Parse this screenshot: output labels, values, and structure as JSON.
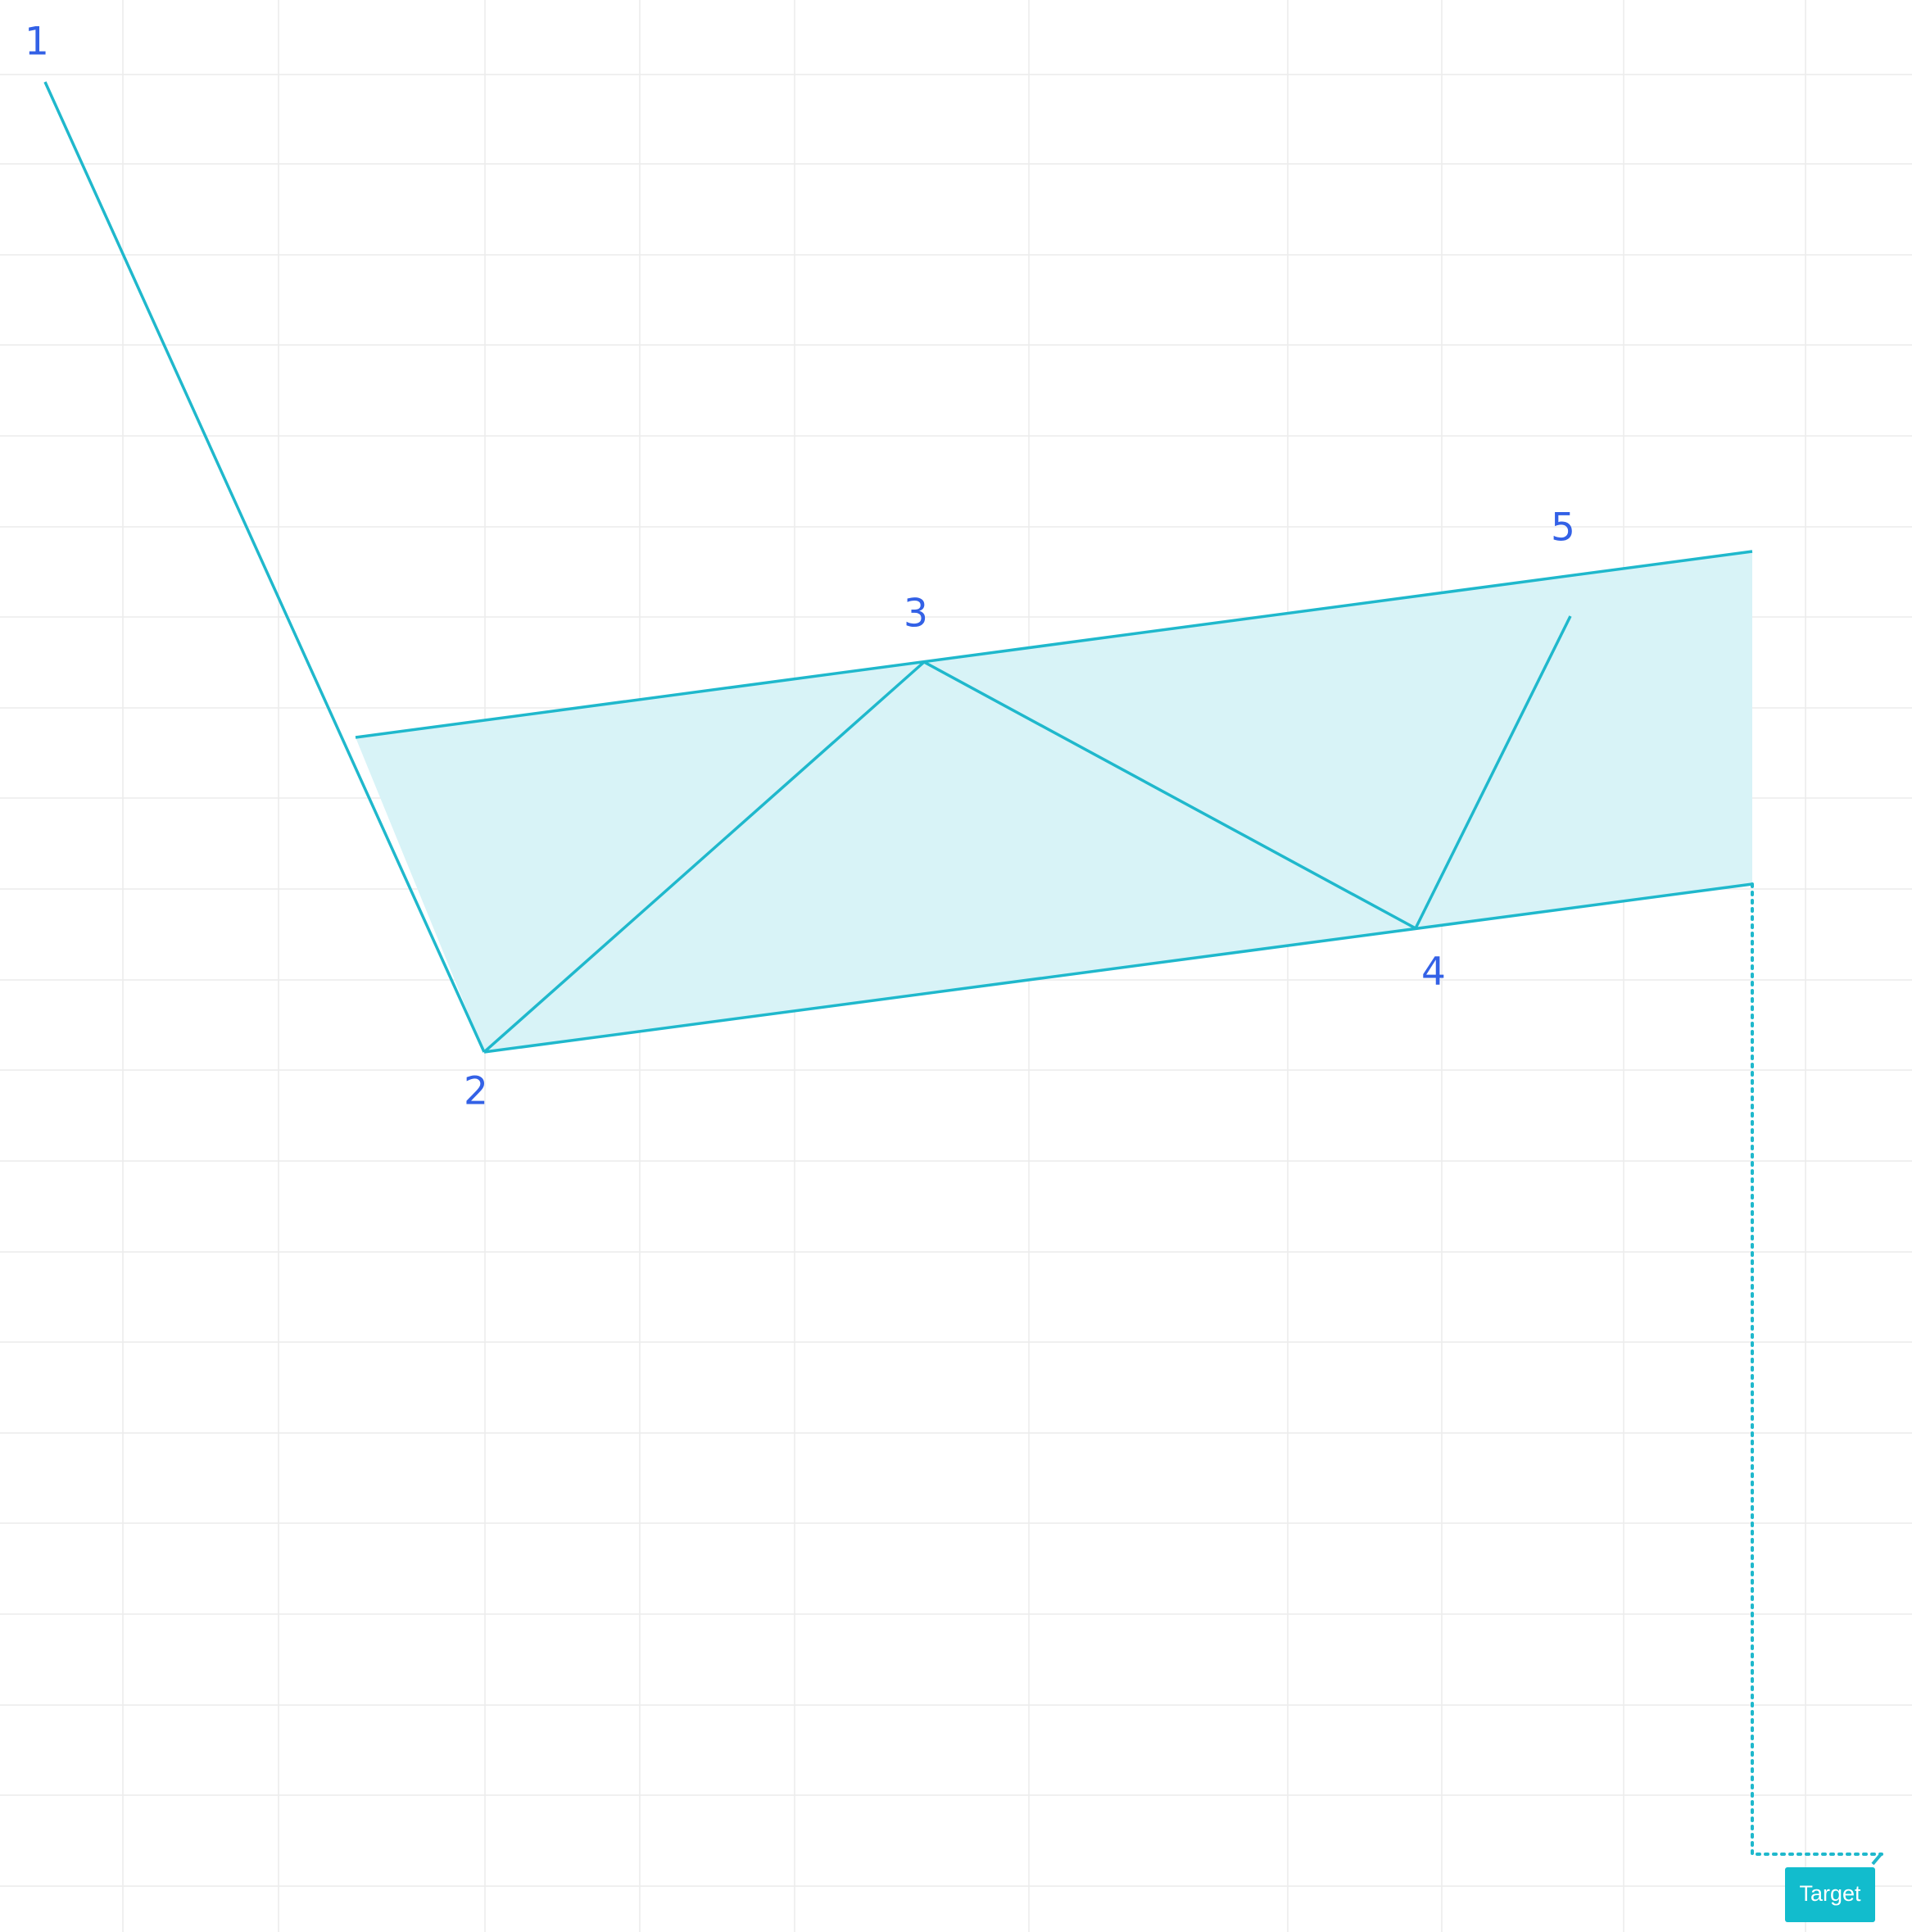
{
  "drawing": {
    "type": "elliott-wave-channel",
    "colors": {
      "line": "#1fb8cc",
      "fill": "#d8f3f7",
      "label": "#3361e6",
      "grid": "#ececec",
      "background": "#ffffff",
      "target_bg": "#12bccd",
      "target_text": "#ffffff"
    },
    "points": [
      {
        "label": "1"
      },
      {
        "label": "2"
      },
      {
        "label": "3"
      },
      {
        "label": "4"
      },
      {
        "label": "5"
      }
    ],
    "target": {
      "label": "Target"
    }
  }
}
